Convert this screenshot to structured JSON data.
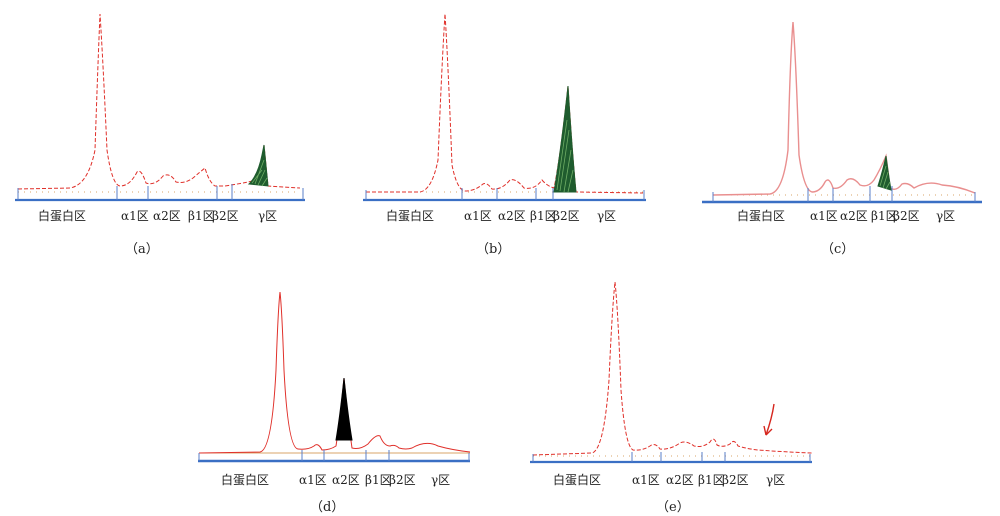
{
  "colors": {
    "trace": "#e0302a",
    "trace_light": "#e98f8f",
    "baseline": "#3a6fc4",
    "tick": "#5a7fc8",
    "dots": "#d8a46a",
    "mspike_green": "#1f5c2e",
    "mspike_black": "#000000",
    "arrow": "#d6261e"
  },
  "panels": [
    {
      "caption": "（a）",
      "zones": [
        "白蛋白区",
        "α1区",
        "α2区",
        "β1区",
        "β2区",
        "γ区"
      ],
      "spike_fill": "mspike_green",
      "has_arrow": false
    },
    {
      "caption": "（b）",
      "zones": [
        "白蛋白区",
        "α1区",
        "α2区",
        "β1区",
        "β2区",
        "γ区"
      ],
      "spike_fill": "mspike_green",
      "has_arrow": false
    },
    {
      "caption": "（c）",
      "zones": [
        "白蛋白区",
        "α1区",
        "α2区",
        "β1区",
        "β2区",
        "γ区"
      ],
      "spike_fill": "mspike_green",
      "has_arrow": false
    },
    {
      "caption": "（d）",
      "zones": [
        "白蛋白区",
        "α1区",
        "α2区",
        "β1区",
        "β2区",
        "γ区"
      ],
      "spike_fill": "mspike_black",
      "has_arrow": false
    },
    {
      "caption": "（e）",
      "zones": [
        "白蛋白区",
        "α1区",
        "α2区",
        "β1区",
        "β2区",
        "γ区"
      ],
      "spike_fill": "none",
      "has_arrow": true
    }
  ]
}
